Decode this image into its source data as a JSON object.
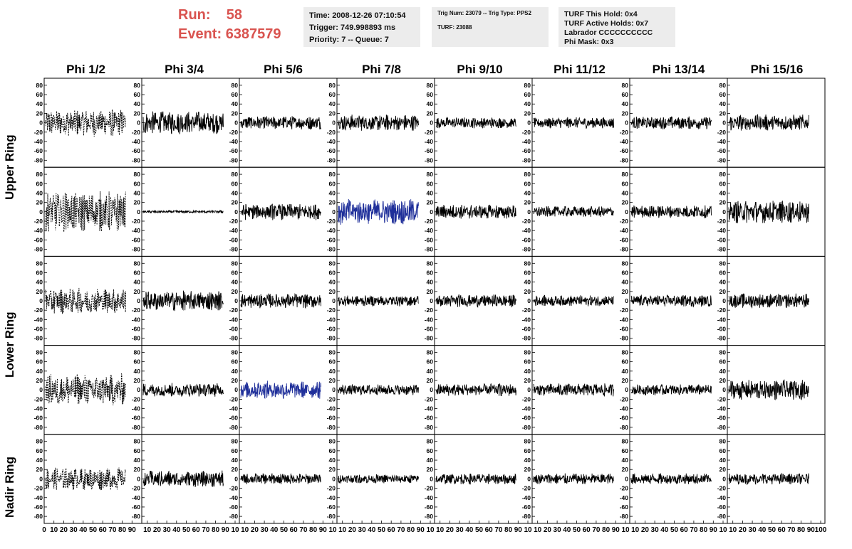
{
  "header": {
    "run_label": "Run:",
    "run_value": "58",
    "event_label": "Event:",
    "event_value": "6387579",
    "info_box_1": [
      "Time: 2008-12-26 07:10:54",
      "Trigger: 749.998893 ms",
      "Priority: 7 -- Queue: 7"
    ],
    "info_box_2": [
      "Trig Num: 23079 -- Trig Type: PPS2",
      "",
      "TURF: 23088"
    ],
    "info_box_3": [
      "TURF This Hold: 0x4",
      "TURF Active Holds: 0x7",
      "Labrador CCCCCCCCCC",
      "Phi Mask: 0x3"
    ]
  },
  "colors": {
    "header_red": "#d9534f",
    "trace_black": "#000000",
    "trace_blue": "#1f2f9a",
    "info_bg": "#ececec"
  },
  "chart_data": {
    "type": "line",
    "columns": [
      "Phi 1/2",
      "Phi 3/4",
      "Phi 5/6",
      "Phi 7/8",
      "Phi 9/10",
      "Phi 11/12",
      "Phi 13/14",
      "Phi 15/16"
    ],
    "rows": [
      "Upper Ring",
      "Lower Ring",
      "Nadir Ring"
    ],
    "xlim": [
      0,
      100
    ],
    "ylim": [
      -95,
      95
    ],
    "y_ticks": [
      "80",
      "60",
      "40",
      "20",
      "0",
      "-20",
      "-40",
      "-60",
      "-80"
    ],
    "x_ticks": [
      [
        "0",
        "10",
        "20",
        "30",
        "40",
        "50",
        "60",
        "70",
        "80",
        "90"
      ],
      [
        "10",
        "20",
        "30",
        "40",
        "50",
        "60",
        "70",
        "80",
        "90",
        "10"
      ],
      [
        "10",
        "20",
        "30",
        "40",
        "50",
        "60",
        "70",
        "80",
        "90",
        "10"
      ],
      [
        "10",
        "20",
        "30",
        "40",
        "50",
        "60",
        "70",
        "80",
        "90",
        "10"
      ],
      [
        "10",
        "20",
        "30",
        "40",
        "50",
        "60",
        "70",
        "80",
        "90",
        "10"
      ],
      [
        "10",
        "20",
        "30",
        "40",
        "50",
        "60",
        "70",
        "80",
        "90",
        "10"
      ],
      [
        "10",
        "20",
        "30",
        "40",
        "50",
        "60",
        "70",
        "80",
        "90",
        "10"
      ],
      [
        "10",
        "20",
        "30",
        "40",
        "50",
        "60",
        "70",
        "80",
        "90",
        "100"
      ]
    ],
    "panel_amplitudes": [
      [
        30,
        25,
        15,
        18,
        12,
        12,
        14,
        18
      ],
      [
        45,
        3,
        18,
        28,
        16,
        12,
        14,
        25
      ],
      [
        28,
        22,
        16,
        12,
        14,
        12,
        13,
        16
      ],
      [
        35,
        15,
        20,
        12,
        14,
        14,
        12,
        22
      ],
      [
        25,
        18,
        12,
        10,
        12,
        12,
        12,
        12
      ]
    ],
    "panel_styles": [
      [
        "dashed",
        "solid",
        "solid",
        "solid",
        "solid",
        "solid",
        "solid",
        "solid"
      ],
      [
        "dashed",
        "solid",
        "solid",
        "blue",
        "solid",
        "solid",
        "solid",
        "solid"
      ],
      [
        "dashed",
        "solid",
        "solid",
        "solid",
        "solid",
        "solid",
        "solid",
        "solid"
      ],
      [
        "dashed",
        "solid",
        "blue",
        "solid",
        "solid",
        "solid",
        "solid",
        "solid"
      ],
      [
        "dashed",
        "solid",
        "solid",
        "solid",
        "solid",
        "solid",
        "solid",
        "solid"
      ]
    ]
  }
}
